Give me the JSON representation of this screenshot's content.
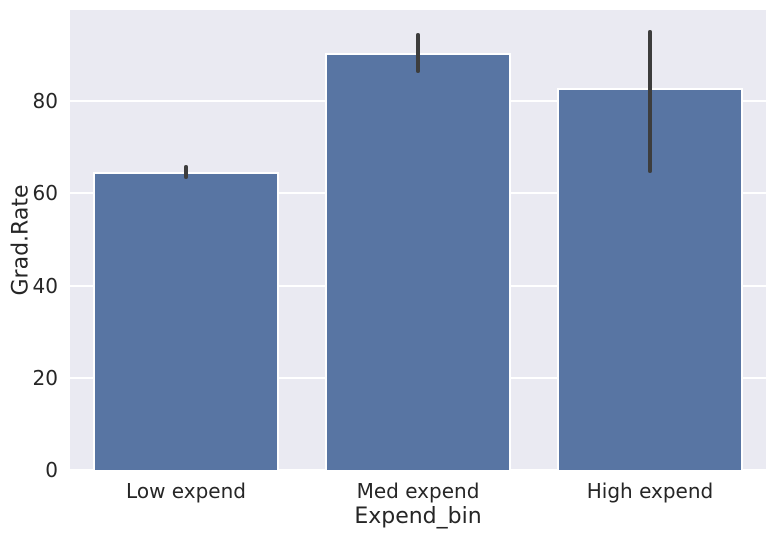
{
  "chart_data": {
    "type": "bar",
    "title": "",
    "xlabel": "Expend_bin",
    "ylabel": "Grad.Rate",
    "categories": [
      "Low expend",
      "Med expend",
      "High expend"
    ],
    "values": [
      64.7,
      90.5,
      82.9
    ],
    "error_low": [
      63.1,
      86.2,
      64.4
    ],
    "error_high": [
      66.2,
      94.8,
      95.5
    ],
    "yticks": [
      0,
      20,
      40,
      60,
      80
    ],
    "ylim": [
      0,
      99.8
    ],
    "grid": true,
    "legend": false,
    "colors": {
      "bar_fill": "#5875a3",
      "bar_edge": "#ffffff",
      "error_bar": "#3d3d3d",
      "plot_background": "#eaeaf2",
      "gridline": "#ffffff",
      "figure_background": "#ffffff",
      "text": "#262626"
    }
  }
}
